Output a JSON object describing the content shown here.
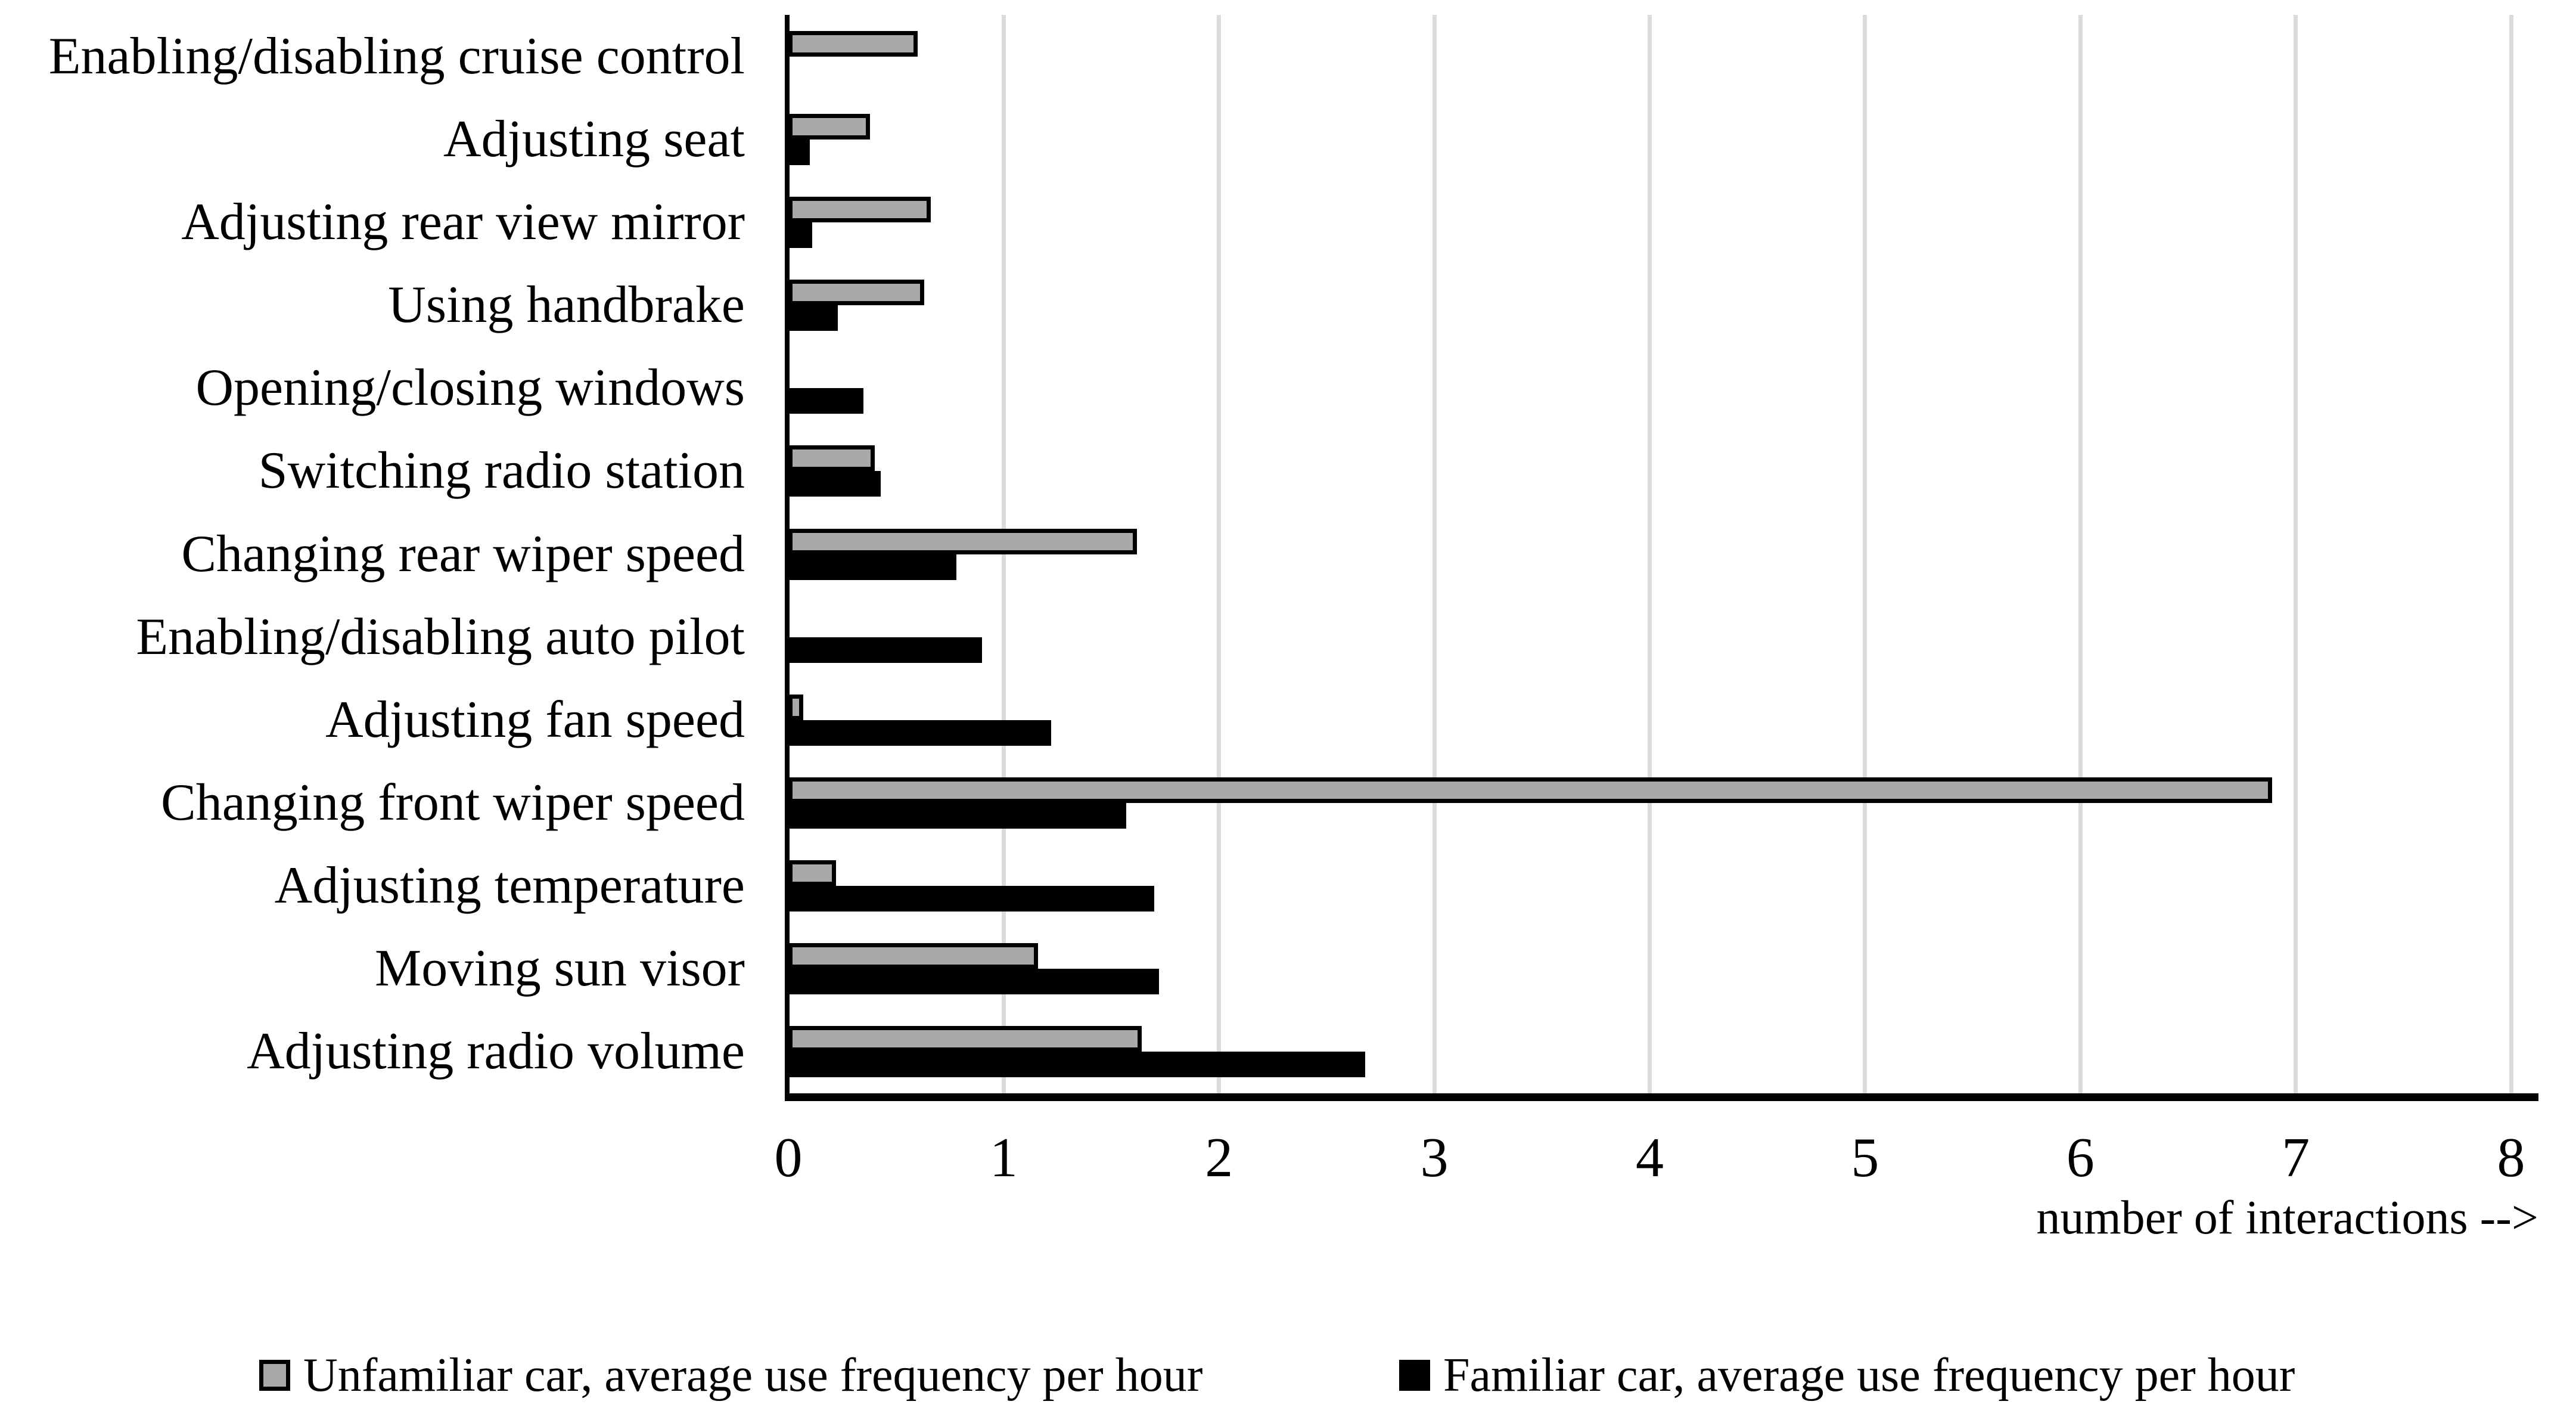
{
  "chart_data": {
    "type": "bar",
    "orientation": "horizontal",
    "xlabel": "number of interactions -->",
    "xlim": [
      0,
      8
    ],
    "x_ticks": [
      "0",
      "1",
      "2",
      "3",
      "4",
      "5",
      "6",
      "7",
      "8"
    ],
    "grid": "vertical",
    "legend_position": "bottom",
    "categories": [
      "Enabling/disabling cruise control",
      "Adjusting seat",
      "Adjusting rear view mirror",
      "Using handbrake",
      "Opening/closing windows",
      "Switching radio station",
      "Changing rear wiper speed",
      "Enabling/disabling auto pilot",
      "Adjusting fan speed",
      "Changing front wiper speed",
      "Adjusting temperature",
      "Moving sun visor",
      "Adjusting radio volume"
    ],
    "series": [
      {
        "name": "Unfamiliar car, average use frequency per hour",
        "color": "#ABA9A7",
        "values": [
          0.6,
          0.38,
          0.66,
          0.63,
          0,
          0.4,
          1.62,
          0,
          0.07,
          6.89,
          0.22,
          1.16,
          1.64
        ]
      },
      {
        "name": "Familiar car, average use frequency per hour",
        "color": "#000000",
        "values": [
          0,
          0.1,
          0.11,
          0.23,
          0.35,
          0.43,
          0.78,
          0.9,
          1.22,
          1.57,
          1.7,
          1.72,
          2.68
        ]
      }
    ]
  },
  "colors": {
    "background": "#FFFFFF",
    "gridline": "#DBDBDB",
    "axis": "#000000",
    "text": "#000000"
  }
}
